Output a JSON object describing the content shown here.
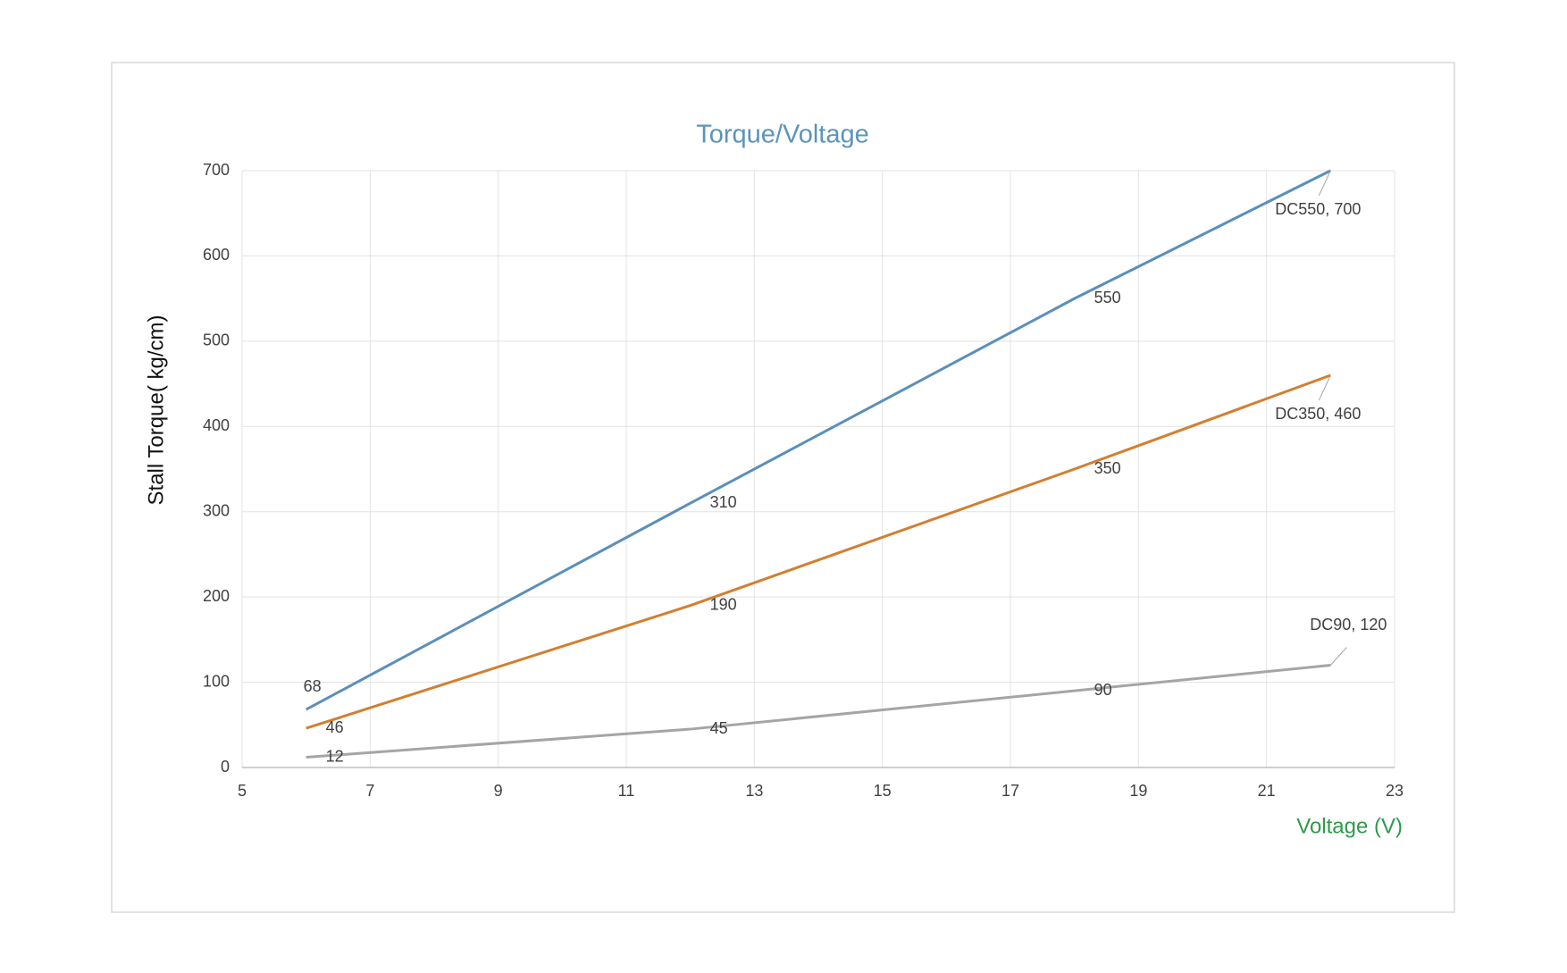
{
  "chart_data": {
    "type": "line",
    "title": "Torque/Voltage",
    "x_label": "Voltage (V)",
    "y_label": "Stall  Torque( kg/cm)",
    "x": [
      6,
      12,
      18,
      22
    ],
    "series": [
      {
        "name": "DC550",
        "color": "#5b8fb9",
        "values": [
          68,
          310,
          550,
          700
        ],
        "value_labels": [
          "68",
          "310",
          "550",
          "DC550, 700"
        ]
      },
      {
        "name": "DC350",
        "color": "#d27f31",
        "values": [
          46,
          190,
          350,
          460
        ],
        "value_labels": [
          "46",
          "190",
          "350",
          "DC350, 460"
        ]
      },
      {
        "name": "DC90",
        "color": "#a5a5a5",
        "values": [
          12,
          45,
          90,
          120
        ],
        "value_labels": [
          "12",
          "45",
          "90",
          "DC90, 120"
        ]
      }
    ],
    "xlim": [
      5,
      23
    ],
    "xticks": [
      5,
      7,
      9,
      11,
      13,
      15,
      17,
      19,
      21,
      23
    ],
    "ylim": [
      0,
      700
    ],
    "yticks": [
      0,
      100,
      200,
      300,
      400,
      500,
      600,
      700
    ],
    "grid": true
  }
}
